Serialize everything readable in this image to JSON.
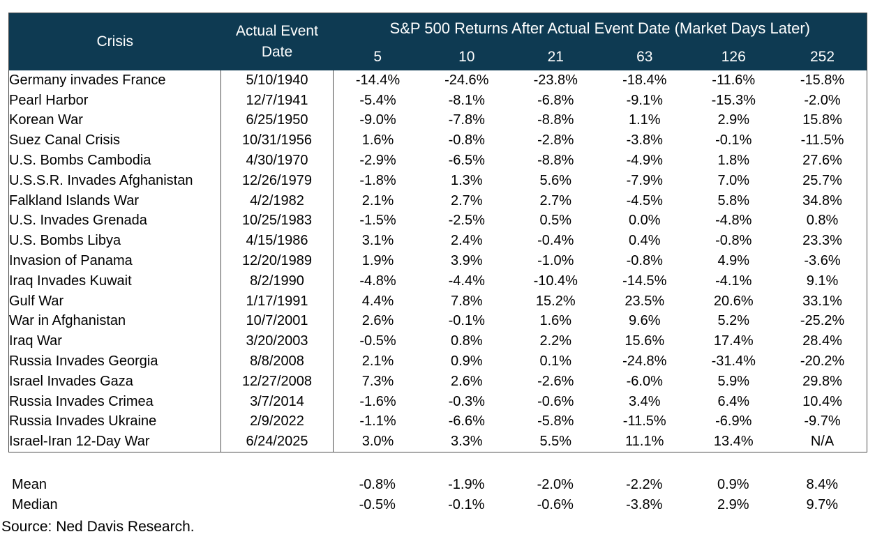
{
  "chart_data": {
    "type": "table",
    "title": "S&P 500 Returns After Actual Event Date (Market Days Later)",
    "header": {
      "crisis_label": "Crisis",
      "event_date_label_line1": "Actual Event",
      "event_date_label_line2": "Date",
      "returns_group_label": "S&P 500 Returns After Actual Event Date (Market Days Later)",
      "market_day_columns": [
        "5",
        "10",
        "21",
        "63",
        "126",
        "252"
      ]
    },
    "rows": [
      {
        "crisis": "Germany invades France",
        "date": "5/10/1940",
        "returns": [
          "-14.4%",
          "-24.6%",
          "-23.8%",
          "-18.4%",
          "-11.6%",
          "-15.8%"
        ]
      },
      {
        "crisis": "Pearl Harbor",
        "date": "12/7/1941",
        "returns": [
          "-5.4%",
          "-8.1%",
          "-6.8%",
          "-9.1%",
          "-15.3%",
          "-2.0%"
        ]
      },
      {
        "crisis": "Korean War",
        "date": "6/25/1950",
        "returns": [
          "-9.0%",
          "-7.8%",
          "-8.8%",
          "1.1%",
          "2.9%",
          "15.8%"
        ]
      },
      {
        "crisis": "Suez Canal Crisis",
        "date": "10/31/1956",
        "returns": [
          "1.6%",
          "-0.8%",
          "-2.8%",
          "-3.8%",
          "-0.1%",
          "-11.5%"
        ]
      },
      {
        "crisis": "U.S. Bombs Cambodia",
        "date": "4/30/1970",
        "returns": [
          "-2.9%",
          "-6.5%",
          "-8.8%",
          "-4.9%",
          "1.8%",
          "27.6%"
        ]
      },
      {
        "crisis": "U.S.S.R. Invades Afghanistan",
        "date": "12/26/1979",
        "returns": [
          "-1.8%",
          "1.3%",
          "5.6%",
          "-7.9%",
          "7.0%",
          "25.7%"
        ]
      },
      {
        "crisis": "Falkland Islands War",
        "date": "4/2/1982",
        "returns": [
          "2.1%",
          "2.7%",
          "2.7%",
          "-4.5%",
          "5.8%",
          "34.8%"
        ]
      },
      {
        "crisis": "U.S. Invades Grenada",
        "date": "10/25/1983",
        "returns": [
          "-1.5%",
          "-2.5%",
          "0.5%",
          "0.0%",
          "-4.8%",
          "0.8%"
        ]
      },
      {
        "crisis": "U.S. Bombs Libya",
        "date": "4/15/1986",
        "returns": [
          "3.1%",
          "2.4%",
          "-0.4%",
          "0.4%",
          "-0.8%",
          "23.3%"
        ]
      },
      {
        "crisis": "Invasion of Panama",
        "date": "12/20/1989",
        "returns": [
          "1.9%",
          "3.9%",
          "-1.0%",
          "-0.8%",
          "4.9%",
          "-3.6%"
        ]
      },
      {
        "crisis": "Iraq Invades Kuwait",
        "date": "8/2/1990",
        "returns": [
          "-4.8%",
          "-4.4%",
          "-10.4%",
          "-14.5%",
          "-4.1%",
          "9.1%"
        ]
      },
      {
        "crisis": "Gulf War",
        "date": "1/17/1991",
        "returns": [
          "4.4%",
          "7.8%",
          "15.2%",
          "23.5%",
          "20.6%",
          "33.1%"
        ]
      },
      {
        "crisis": "War in Afghanistan",
        "date": "10/7/2001",
        "returns": [
          "2.6%",
          "-0.1%",
          "1.6%",
          "9.6%",
          "5.2%",
          "-25.2%"
        ]
      },
      {
        "crisis": "Iraq War",
        "date": "3/20/2003",
        "returns": [
          "-0.5%",
          "0.8%",
          "2.2%",
          "15.6%",
          "17.4%",
          "28.4%"
        ]
      },
      {
        "crisis": "Russia Invades Georgia",
        "date": "8/8/2008",
        "returns": [
          "2.1%",
          "0.9%",
          "0.1%",
          "-24.8%",
          "-31.4%",
          "-20.2%"
        ]
      },
      {
        "crisis": "Israel Invades Gaza",
        "date": "12/27/2008",
        "returns": [
          "7.3%",
          "2.6%",
          "-2.6%",
          "-6.0%",
          "5.9%",
          "29.8%"
        ]
      },
      {
        "crisis": "Russia Invades Crimea",
        "date": "3/7/2014",
        "returns": [
          "-1.6%",
          "-0.3%",
          "-0.6%",
          "3.4%",
          "6.4%",
          "10.4%"
        ]
      },
      {
        "crisis": "Russia Invades Ukraine",
        "date": "2/9/2022",
        "returns": [
          "-1.1%",
          "-6.6%",
          "-5.8%",
          "-11.5%",
          "-6.9%",
          "-9.7%"
        ]
      },
      {
        "crisis": "Israel-Iran 12-Day War",
        "date": "6/24/2025",
        "returns": [
          "3.0%",
          "3.3%",
          "5.5%",
          "11.1%",
          "13.4%",
          "N/A"
        ]
      }
    ],
    "summary_rows": [
      {
        "label": "Mean",
        "returns": [
          "-0.8%",
          "-1.9%",
          "-2.0%",
          "-2.2%",
          "0.9%",
          "8.4%"
        ]
      },
      {
        "label": "Median",
        "returns": [
          "-0.5%",
          "-0.1%",
          "-0.6%",
          "-3.8%",
          "2.9%",
          "9.7%"
        ]
      }
    ]
  },
  "source_note": "Source: Ned Davis Research.",
  "colors": {
    "header_bg": "#0e3a52",
    "header_text": "#ffffff",
    "body_text": "#000000",
    "border": "#4d4d4d",
    "page_bg": "#ffffff"
  }
}
